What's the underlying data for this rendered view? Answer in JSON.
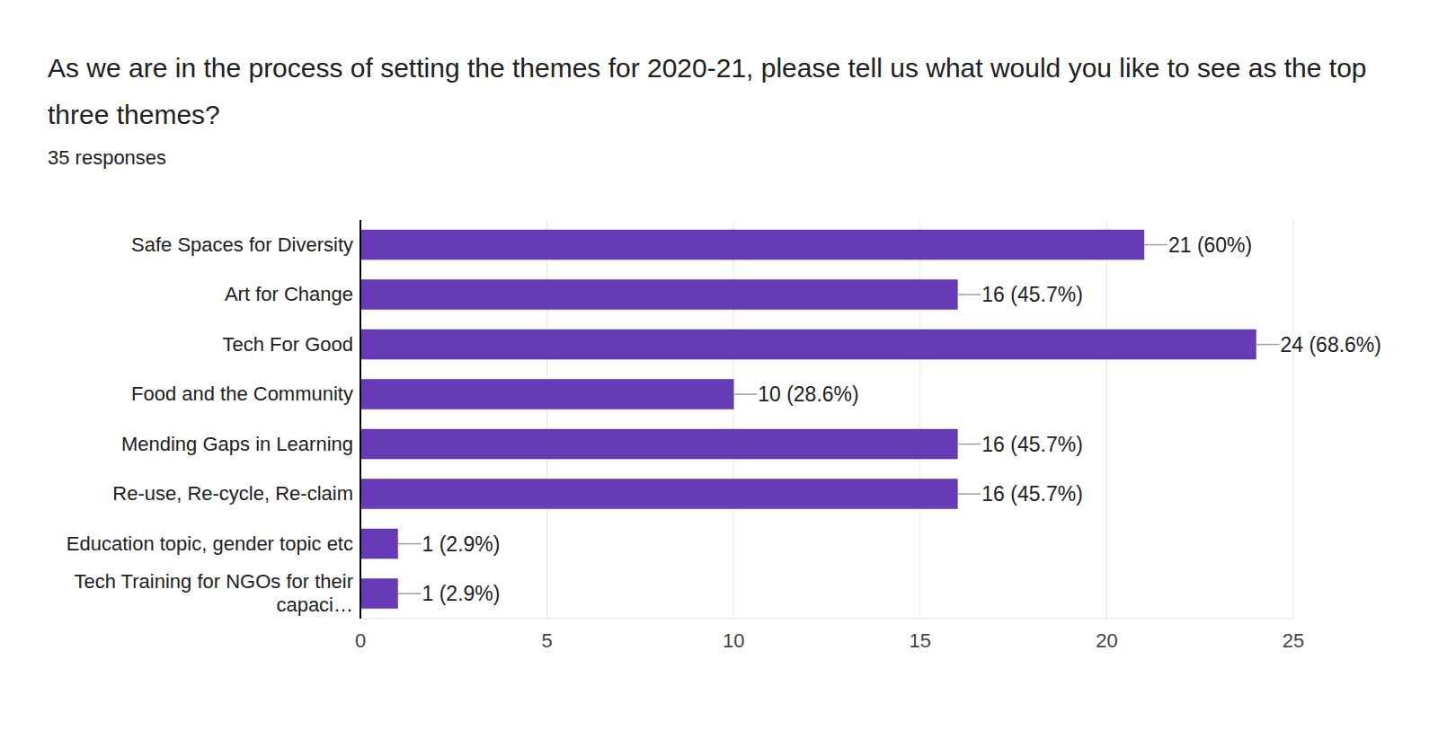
{
  "chart_data": {
    "type": "bar",
    "title": "As we are in the process of setting the themes for 2020-21, please tell us what would you like to see as the top three themes?",
    "subtitle": "35 responses",
    "orientation": "horizontal",
    "categories": [
      "Safe Spaces for Diversity",
      "Art for Change",
      "Tech For Good",
      "Food and the Community",
      "Mending Gaps in Learning",
      "Re-use, Re-cycle, Re-claim",
      "Education topic, gender topic etc",
      "Tech Training for NGOs for their capaci…"
    ],
    "values": [
      21,
      16,
      24,
      10,
      16,
      16,
      1,
      1
    ],
    "value_labels": [
      "21 (60%)",
      "16 (45.7%)",
      "24 (68.6%)",
      "10 (28.6%)",
      "16 (45.7%)",
      "16 (45.7%)",
      "1 (2.9%)",
      "1 (2.9%)"
    ],
    "color": "#673ab7",
    "xlim": [
      0,
      25
    ],
    "xticks": [
      0,
      5,
      10,
      15,
      20,
      25
    ],
    "grid": true,
    "data_labels": true
  }
}
